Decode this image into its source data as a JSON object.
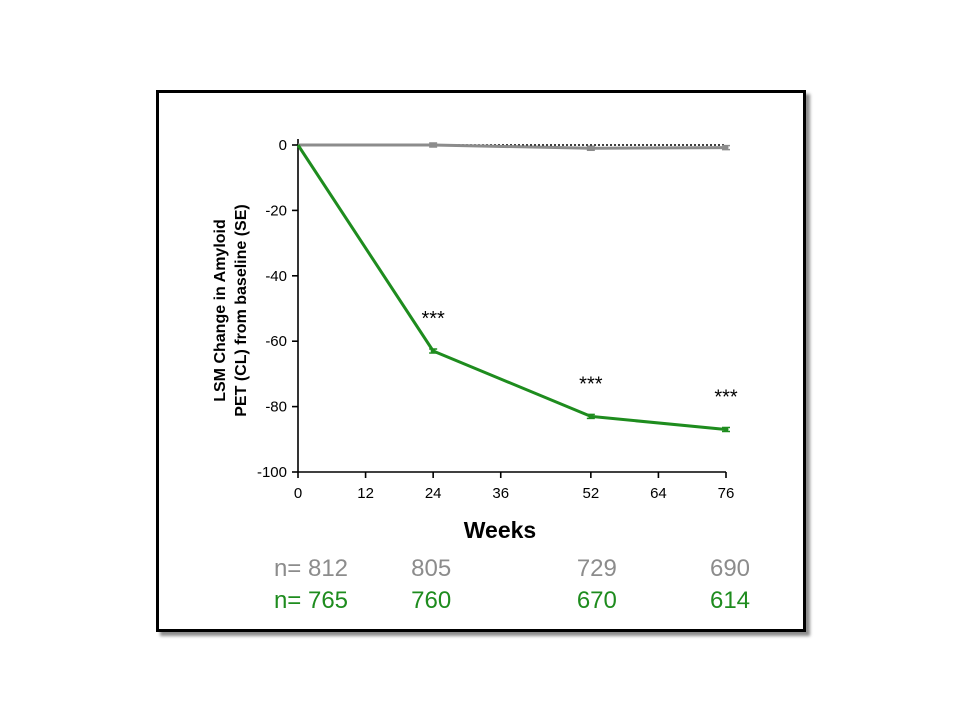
{
  "chart_data": {
    "type": "line",
    "xlabel": "Weeks",
    "ylabel_lines": [
      "LSM Change in Amyloid",
      "PET (CL) from baseline (SE)"
    ],
    "xlim": [
      0,
      76
    ],
    "ylim": [
      -100,
      0
    ],
    "x_ticks": [
      "0",
      "12",
      "24",
      "36",
      "52",
      "64",
      "76"
    ],
    "y_ticks": [
      "0",
      "-20",
      "-40",
      "-60",
      "-80",
      "-100"
    ],
    "reference_line": {
      "y": 0,
      "style": "dotted"
    },
    "series": [
      {
        "color": "#8c8c8c",
        "x": [
          0,
          24,
          52,
          76
        ],
        "y": [
          0,
          0,
          -1,
          -0.8
        ]
      },
      {
        "color": "#1e8c1e",
        "x": [
          0,
          24,
          52,
          76
        ],
        "y": [
          0,
          -63,
          -83,
          -87
        ]
      }
    ],
    "significance_markers": [
      {
        "x": 24,
        "text": "***"
      },
      {
        "x": 52,
        "text": "***"
      },
      {
        "x": 76,
        "text": "***"
      }
    ],
    "n_rows": [
      {
        "color": "#8c8c8c",
        "values": [
          "n= 812",
          "805",
          "729",
          "690"
        ]
      },
      {
        "color": "#1e8c1e",
        "values": [
          "n= 765",
          "760",
          "670",
          "614"
        ]
      }
    ]
  }
}
